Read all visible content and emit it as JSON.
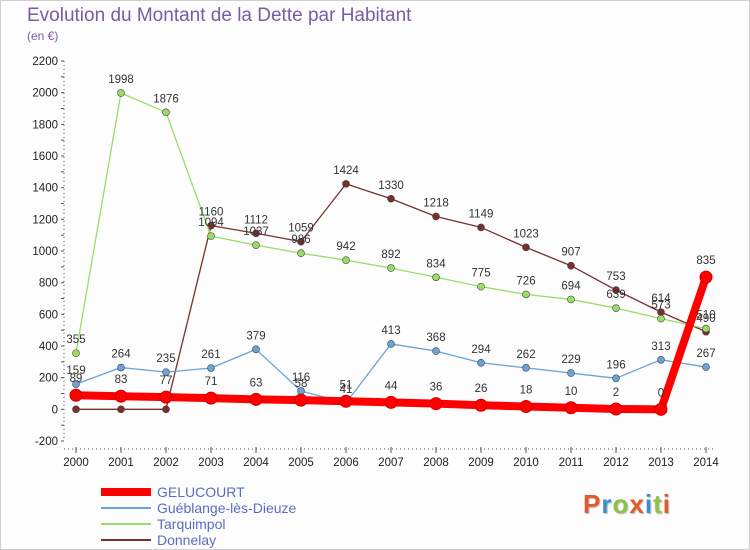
{
  "title": "Evolution du Montant de la Dette par Habitant",
  "subtitle": "(en €)",
  "logo_text": "Proxiti",
  "colors": {
    "title": "#7b5aa6",
    "axis": "#222222",
    "logo": [
      "#e05a2b",
      "#3a8fd0",
      "#8bc34a",
      "#e05a2b",
      "#3a8fd0",
      "#8bc34a",
      "#e05a2b"
    ]
  },
  "chart_data": {
    "type": "line",
    "title": "Evolution du Montant de la Dette par Habitant",
    "xlabel": "",
    "ylabel": "(en €)",
    "ylim": [
      -200,
      2200
    ],
    "yticks": [
      -200,
      0,
      200,
      400,
      600,
      800,
      1000,
      1200,
      1400,
      1600,
      1800,
      2000,
      2200
    ],
    "grid": false,
    "legend_position": "bottom-left",
    "x": [
      "2000",
      "2001",
      "2002",
      "2003",
      "2004",
      "2005",
      "2006",
      "2007",
      "2008",
      "2009",
      "2010",
      "2011",
      "2012",
      "2013",
      "2014"
    ],
    "series": [
      {
        "name": "GELUCOURT",
        "color": "#ff0000",
        "values": [
          89,
          83,
          77,
          71,
          63,
          58,
          51,
          44,
          36,
          26,
          18,
          10,
          2,
          0,
          835
        ],
        "labels": [
          "89",
          "83",
          "77",
          "71",
          "63",
          "58",
          "51",
          "44",
          "36",
          "26",
          "18",
          "10",
          "2",
          "0",
          "835"
        ]
      },
      {
        "name": "Guéblange-lès-Dieuze",
        "color": "#6aa3d8",
        "values": [
          159,
          264,
          235,
          261,
          379,
          116,
          41,
          413,
          368,
          294,
          262,
          229,
          196,
          313,
          267
        ],
        "labels": [
          "159",
          "264",
          "235",
          "261",
          "379",
          "116",
          "41",
          "413",
          "368",
          "294",
          "262",
          "229",
          "196",
          "313",
          "267"
        ]
      },
      {
        "name": "Tarquimpol",
        "color": "#99dd66",
        "values": [
          355,
          1998,
          1876,
          1094,
          1037,
          986,
          942,
          892,
          834,
          775,
          726,
          694,
          639,
          573,
          510
        ],
        "labels": [
          "355",
          "1998",
          "1876",
          "1094",
          "1037",
          "986",
          "942",
          "892",
          "834",
          "775",
          "726",
          "694",
          "639",
          "573",
          "510"
        ]
      },
      {
        "name": "Donnelay",
        "color": "#7a2e2e",
        "values": [
          0,
          0,
          0,
          1160,
          1112,
          1059,
          1424,
          1330,
          1218,
          1149,
          1023,
          907,
          753,
          614,
          490
        ],
        "labels": [
          "",
          "",
          "",
          "1160",
          "1112",
          "1059",
          "1424",
          "1330",
          "1218",
          "1149",
          "1023",
          "907",
          "753",
          "614",
          "490"
        ]
      }
    ]
  }
}
